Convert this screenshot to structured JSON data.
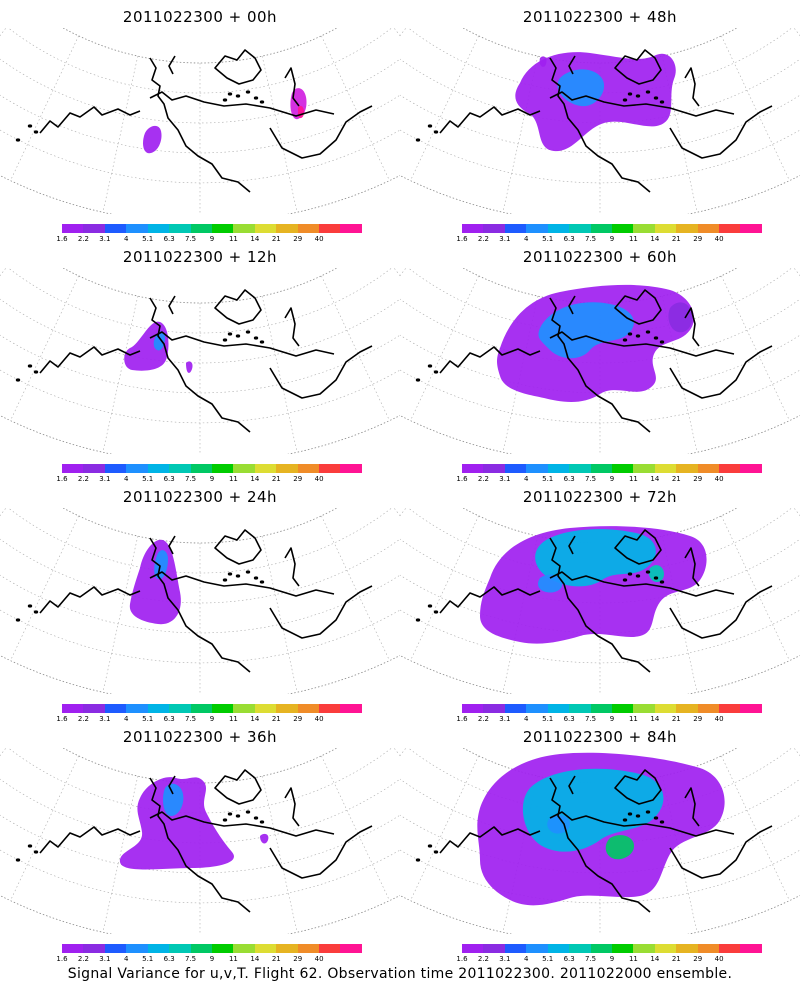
{
  "footer": "Signal Variance for u,v,T. Flight 62. Observation time 2011022300. 2011022000 ensemble.",
  "colorbar": {
    "labels": [
      "1.6",
      "2.2",
      "3.1",
      "4",
      "5.1",
      "6.3",
      "7.5",
      "9",
      "11",
      "14",
      "21",
      "29",
      "40"
    ],
    "colors": [
      "#a020f0",
      "#8a2be2",
      "#1e5bff",
      "#1e90ff",
      "#00b4e6",
      "#00c8b4",
      "#00c864",
      "#00cc00",
      "#99dd33",
      "#dddd33",
      "#e6b422",
      "#f08c28",
      "#fa3c3c",
      "#ff1493"
    ]
  },
  "chart_data": [
    {
      "type": "heatmap",
      "title": "2011022300 + 00h",
      "lead_hours": 0,
      "coverage": 0.06,
      "max_level": "40"
    },
    {
      "type": "heatmap",
      "title": "2011022300 + 12h",
      "lead_hours": 12,
      "coverage": 0.1,
      "max_level": "4"
    },
    {
      "type": "heatmap",
      "title": "2011022300 + 24h",
      "lead_hours": 24,
      "coverage": 0.16,
      "max_level": "5.1"
    },
    {
      "type": "heatmap",
      "title": "2011022300 + 36h",
      "lead_hours": 36,
      "coverage": 0.28,
      "max_level": "5.1"
    },
    {
      "type": "heatmap",
      "title": "2011022300 + 48h",
      "lead_hours": 48,
      "coverage": 0.38,
      "max_level": "5.1"
    },
    {
      "type": "heatmap",
      "title": "2011022300 + 60h",
      "lead_hours": 60,
      "coverage": 0.55,
      "max_level": "5.1"
    },
    {
      "type": "heatmap",
      "title": "2011022300 + 72h",
      "lead_hours": 72,
      "coverage": 0.68,
      "max_level": "7.5"
    },
    {
      "type": "heatmap",
      "title": "2011022300 + 84h",
      "lead_hours": 84,
      "coverage": 0.85,
      "max_level": "9"
    }
  ]
}
